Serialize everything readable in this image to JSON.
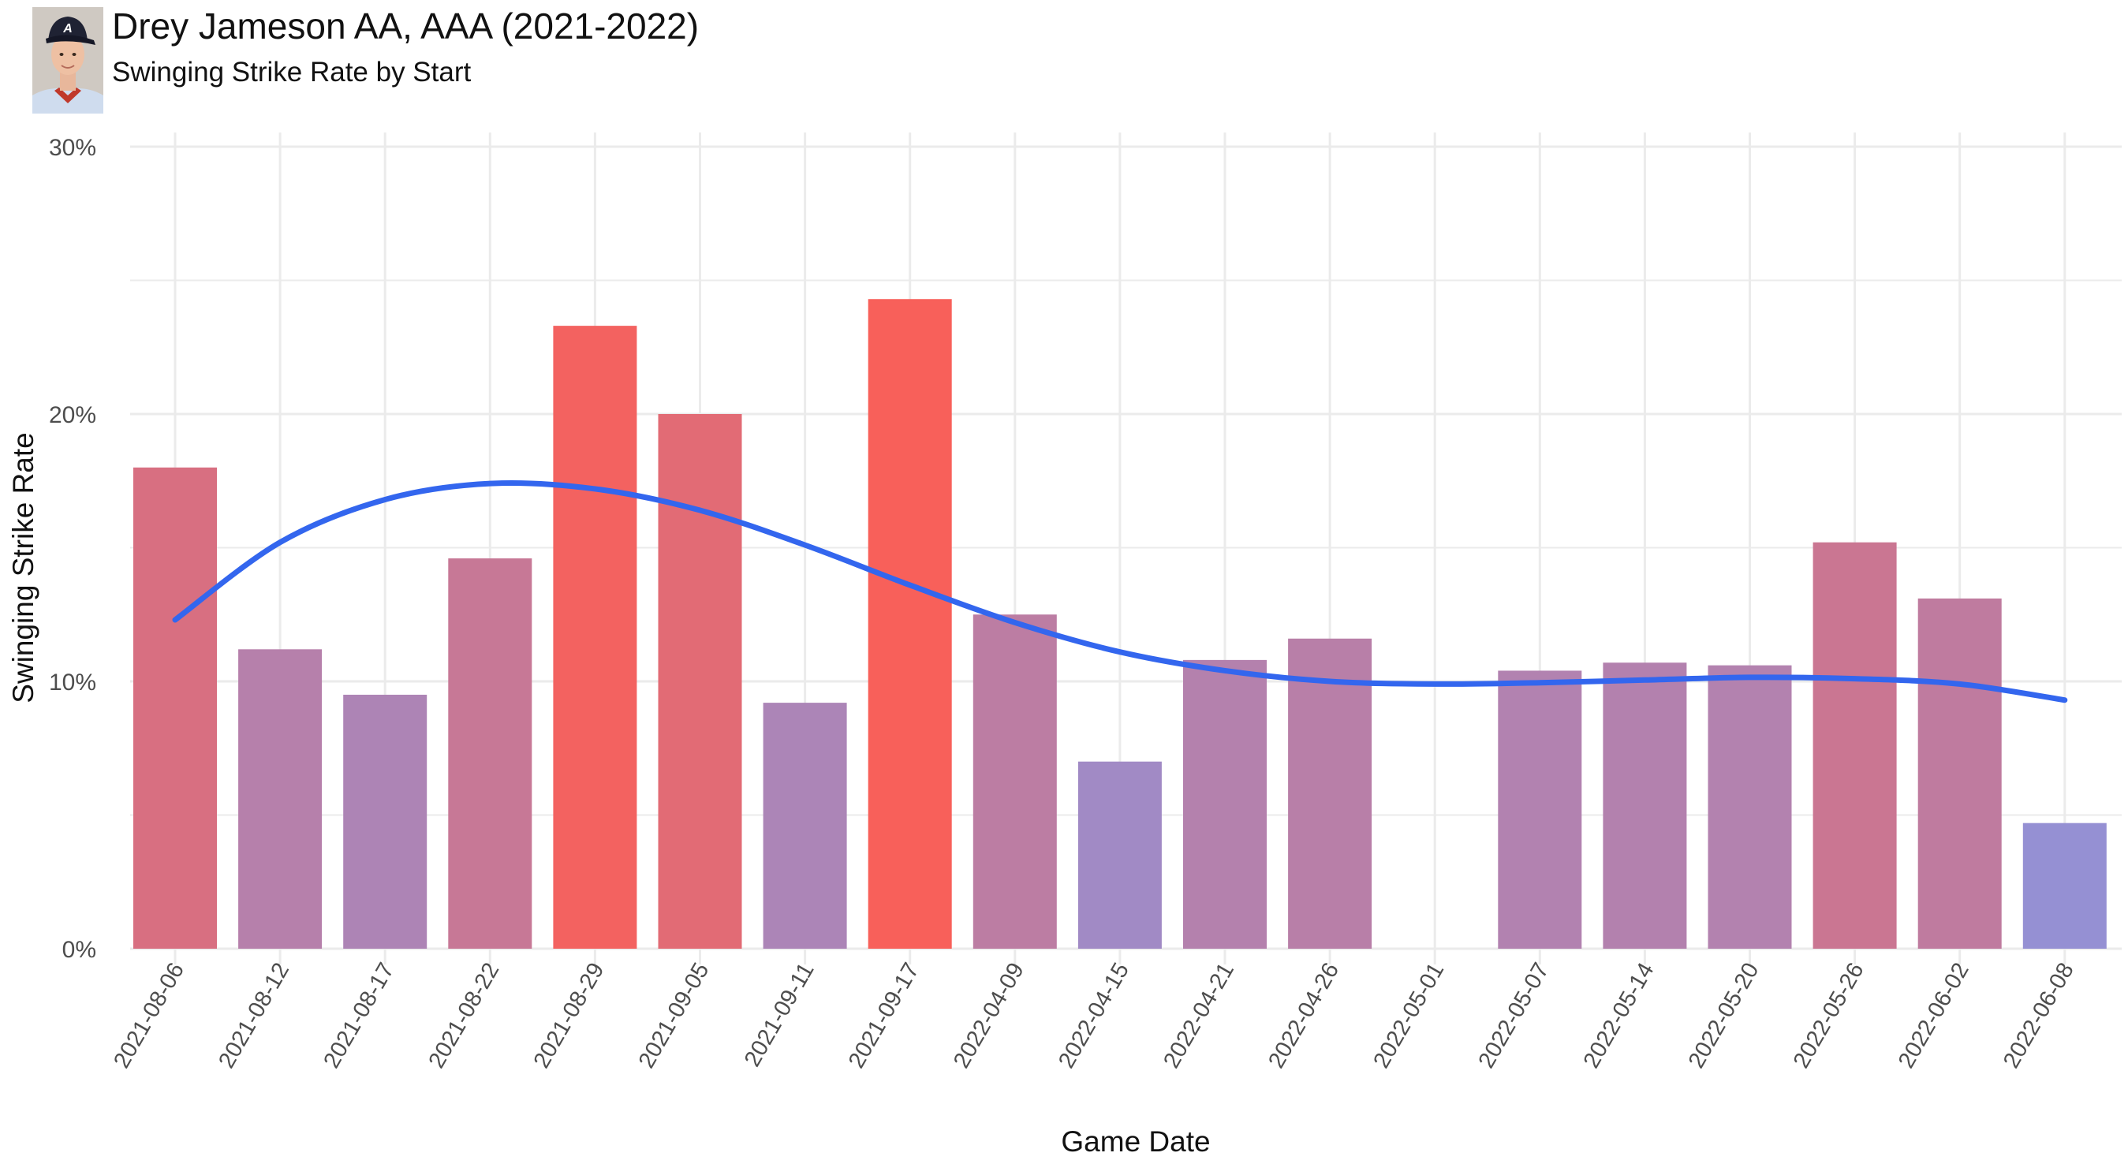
{
  "chart_data": {
    "type": "bar",
    "title": "Drey Jameson AA, AAA (2021-2022)",
    "subtitle": "Swinging Strike Rate by Start",
    "xlabel": "Game Date",
    "ylabel": "Swinging Strike Rate",
    "ylim": [
      0,
      0.3
    ],
    "y_ticks": [
      {
        "value": 0,
        "label": "0%"
      },
      {
        "value": 0.1,
        "label": "10%"
      },
      {
        "value": 0.2,
        "label": "20%"
      },
      {
        "value": 0.3,
        "label": "30%"
      }
    ],
    "grid": true,
    "legend": "none",
    "bar_color_low": "#9590d3",
    "bar_color_high": "#f8605a",
    "trend_color": "#3366ee",
    "categories": [
      "2021-08-06",
      "2021-08-12",
      "2021-08-17",
      "2021-08-22",
      "2021-08-29",
      "2021-09-05",
      "2021-09-11",
      "2021-09-17",
      "2022-04-09",
      "2022-04-15",
      "2022-04-21",
      "2022-04-26",
      "2022-05-01",
      "2022-05-07",
      "2022-05-14",
      "2022-05-20",
      "2022-05-26",
      "2022-06-02",
      "2022-06-08"
    ],
    "values": [
      0.18,
      0.112,
      0.095,
      0.146,
      0.233,
      0.2,
      0.092,
      0.243,
      0.125,
      0.07,
      0.108,
      0.116,
      0.0,
      0.104,
      0.107,
      0.106,
      0.152,
      0.131,
      0.047
    ],
    "trend": [
      0.123,
      0.152,
      0.168,
      0.174,
      0.172,
      0.164,
      0.151,
      0.136,
      0.122,
      0.111,
      0.104,
      0.1,
      0.099,
      0.0995,
      0.1005,
      0.1015,
      0.101,
      0.099,
      0.093
    ]
  }
}
